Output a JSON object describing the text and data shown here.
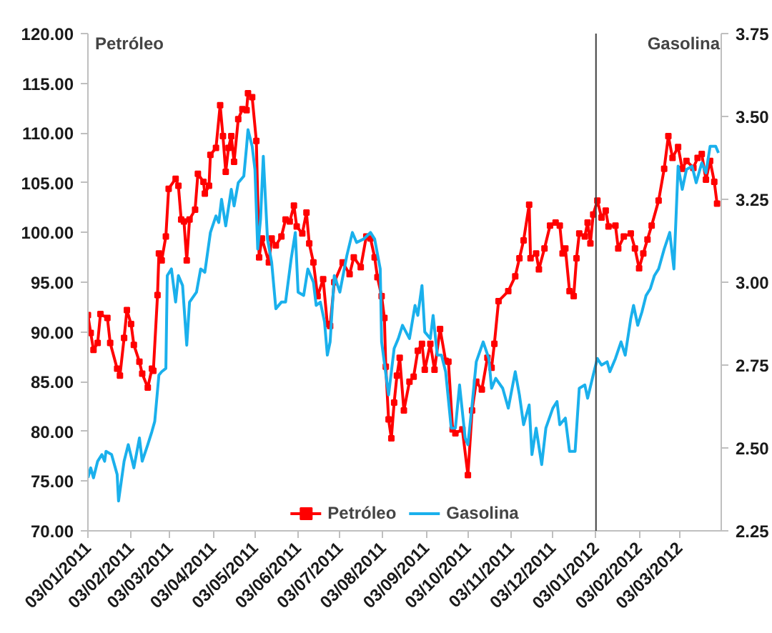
{
  "chart_data": {
    "type": "line",
    "ylabel": "Petróleo",
    "y2label": "Gasolina",
    "legend": "bottom",
    "grid": false,
    "line_style": "solid",
    "xlim": [
      "2011-01-03",
      "2012-04-02"
    ],
    "xticks": [
      {
        "value": "2011-01-03",
        "label": "03/01/2011"
      },
      {
        "value": "2011-02-03",
        "label": "03/02/2011"
      },
      {
        "value": "2011-03-03",
        "label": "03/03/2011"
      },
      {
        "value": "2011-04-03",
        "label": "03/04/2011"
      },
      {
        "value": "2011-05-03",
        "label": "03/05/2011"
      },
      {
        "value": "2011-06-03",
        "label": "03/06/2011"
      },
      {
        "value": "2011-07-03",
        "label": "03/07/2011"
      },
      {
        "value": "2011-08-03",
        "label": "03/08/2011"
      },
      {
        "value": "2011-09-03",
        "label": "03/09/2011"
      },
      {
        "value": "2011-10-03",
        "label": "03/10/2011"
      },
      {
        "value": "2011-11-03",
        "label": "03/11/2011"
      },
      {
        "value": "2011-12-03",
        "label": "03/12/2011"
      },
      {
        "value": "2012-01-03",
        "label": "03/01/2012"
      },
      {
        "value": "2012-02-03",
        "label": "03/02/2012"
      },
      {
        "value": "2012-03-03",
        "label": "03/03/2012"
      }
    ],
    "ylim": [
      70,
      120
    ],
    "yticks": [
      {
        "value": 70,
        "label": "70.00"
      },
      {
        "value": 75,
        "label": "75.00"
      },
      {
        "value": 80,
        "label": "80.00"
      },
      {
        "value": 85,
        "label": "85.00"
      },
      {
        "value": 90,
        "label": "90.00"
      },
      {
        "value": 95,
        "label": "95.00"
      },
      {
        "value": 100,
        "label": "100.00"
      },
      {
        "value": 105,
        "label": "105.00"
      },
      {
        "value": 110,
        "label": "110.00"
      },
      {
        "value": 115,
        "label": "115.00"
      },
      {
        "value": 120,
        "label": "120.00"
      }
    ],
    "y2lim": [
      2.25,
      3.75
    ],
    "y2ticks": [
      2.25,
      {
        "value": 2.5,
        "label": "2.50"
      },
      2.75,
      {
        "value": 3,
        "label": "3.00"
      },
      3.25,
      {
        "value": 3.5,
        "label": "3.50"
      },
      3.75
    ],
    "ref_lines": [
      {
        "axis": "x",
        "value": "2012-01-03",
        "color": "#404040",
        "line_style": "solid"
      }
    ],
    "series": [
      {
        "name": "Petróleo",
        "color": "#ff0000",
        "marker": "square",
        "axis": "y",
        "x": [
          "2011-01-03",
          "2011-01-05",
          "2011-01-07",
          "2011-01-10",
          "2011-01-12",
          "2011-01-17",
          "2011-01-19",
          "2011-01-24",
          "2011-01-26",
          "2011-01-29",
          "2011-01-31",
          "2011-02-03",
          "2011-02-05",
          "2011-02-09",
          "2011-02-11",
          "2011-02-15",
          "2011-02-18",
          "2011-02-19",
          "2011-02-22",
          "2011-02-23",
          "2011-02-25",
          "2011-02-28",
          "2011-03-02",
          "2011-03-07",
          "2011-03-09",
          "2011-03-11",
          "2011-03-13",
          "2011-03-15",
          "2011-03-17",
          "2011-03-21",
          "2011-03-23",
          "2011-03-27",
          "2011-03-28",
          "2011-03-31",
          "2011-04-01",
          "2011-04-05",
          "2011-04-08",
          "2011-04-10",
          "2011-04-12",
          "2011-04-14",
          "2011-04-16",
          "2011-04-18",
          "2011-04-21",
          "2011-04-24",
          "2011-04-27",
          "2011-04-28",
          "2011-05-01",
          "2011-05-04",
          "2011-05-06",
          "2011-05-08",
          "2011-05-13",
          "2011-05-15",
          "2011-05-18",
          "2011-05-22",
          "2011-05-25",
          "2011-05-28",
          "2011-05-31",
          "2011-06-02",
          "2011-06-06",
          "2011-06-09",
          "2011-06-11",
          "2011-06-14",
          "2011-06-17",
          "2011-06-21",
          "2011-06-24",
          "2011-06-26",
          "2011-06-29",
          "2011-07-05",
          "2011-07-10",
          "2011-07-13",
          "2011-07-18",
          "2011-07-22",
          "2011-07-25",
          "2011-07-28",
          "2011-07-30",
          "2011-08-02",
          "2011-08-04",
          "2011-08-05",
          "2011-08-07",
          "2011-08-09",
          "2011-08-11",
          "2011-08-13",
          "2011-08-15",
          "2011-08-18",
          "2011-08-22",
          "2011-08-25",
          "2011-08-28",
          "2011-08-31",
          "2011-09-02",
          "2011-09-06",
          "2011-09-09",
          "2011-09-13",
          "2011-09-17",
          "2011-09-19",
          "2011-09-22",
          "2011-09-24",
          "2011-09-29",
          "2011-10-03",
          "2011-10-06",
          "2011-10-09",
          "2011-10-13",
          "2011-10-17",
          "2011-10-20",
          "2011-10-22",
          "2011-10-25",
          "2011-11-01",
          "2011-11-06",
          "2011-11-09",
          "2011-11-12",
          "2011-11-16",
          "2011-11-17",
          "2011-11-21",
          "2011-11-23",
          "2011-11-27",
          "2011-12-01",
          "2011-12-05",
          "2011-12-08",
          "2011-12-10",
          "2011-12-12",
          "2011-12-15",
          "2011-12-18",
          "2011-12-20",
          "2011-12-22",
          "2011-12-26",
          "2011-12-28",
          "2011-12-30",
          "2012-01-01",
          "2012-01-04",
          "2012-01-07",
          "2012-01-10",
          "2012-01-12",
          "2012-01-17",
          "2012-01-19",
          "2012-01-23",
          "2012-01-28",
          "2012-01-31",
          "2012-02-03",
          "2012-02-06",
          "2012-02-09",
          "2012-02-12",
          "2012-02-17",
          "2012-02-21",
          "2012-02-24",
          "2012-02-27",
          "2012-03-02",
          "2012-03-05",
          "2012-03-08",
          "2012-03-13",
          "2012-03-16",
          "2012-03-19",
          "2012-03-22",
          "2012-03-25",
          "2012-03-28",
          "2012-03-30"
        ],
        "values": [
          91.7,
          89.9,
          88.2,
          88.9,
          91.8,
          91.4,
          88.9,
          86.3,
          85.6,
          89.4,
          92.2,
          90.8,
          88.7,
          87.0,
          85.8,
          84.4,
          86.3,
          86.1,
          93.7,
          97.9,
          97.2,
          99.6,
          104.4,
          105.4,
          104.7,
          101.3,
          101.1,
          97.2,
          101.3,
          102.3,
          105.9,
          105.1,
          103.9,
          104.7,
          107.8,
          108.5,
          112.8,
          109.7,
          106.1,
          108.5,
          109.7,
          107.1,
          111.4,
          112.4,
          112.3,
          114.0,
          113.6,
          109.2,
          97.5,
          99.4,
          97.0,
          99.4,
          98.7,
          99.6,
          101.3,
          101.1,
          102.7,
          100.6,
          99.9,
          102.0,
          98.9,
          97.0,
          93.6,
          95.3,
          90.8,
          90.6,
          95.0,
          97.0,
          95.8,
          97.5,
          96.5,
          99.6,
          99.4,
          97.5,
          95.5,
          93.6,
          91.4,
          86.5,
          81.2,
          79.3,
          82.9,
          85.6,
          87.4,
          82.1,
          85.0,
          85.5,
          88.1,
          88.8,
          86.2,
          88.8,
          86.2,
          90.3,
          87.1,
          87.0,
          80.2,
          79.8,
          80.2,
          75.6,
          82.1,
          85.0,
          84.2,
          87.4,
          86.4,
          88.8,
          93.1,
          94.1,
          95.6,
          97.4,
          99.2,
          102.8,
          97.4,
          97.9,
          96.3,
          98.4,
          100.7,
          101.0,
          100.7,
          97.9,
          98.4,
          94.1,
          93.6,
          97.4,
          99.9,
          99.6,
          101.0,
          98.9,
          101.8,
          103.2,
          101.5,
          102.2,
          100.6,
          100.7,
          98.4,
          99.6,
          99.9,
          98.4,
          96.4,
          97.9,
          99.3,
          100.7,
          103.2,
          106.4,
          109.7,
          107.5,
          108.6,
          106.4,
          107.2,
          106.5,
          107.5,
          107.9,
          105.3,
          107.2,
          105.1,
          102.9
        ]
      },
      {
        "name": "Gasolina",
        "color": "#1ab0ec",
        "marker": "none",
        "axis": "y2",
        "x": [
          "2011-01-03",
          "2011-01-05",
          "2011-01-07",
          "2011-01-10",
          "2011-01-13",
          "2011-01-15",
          "2011-01-16",
          "2011-01-20",
          "2011-01-24",
          "2011-01-25",
          "2011-01-29",
          "2011-02-01",
          "2011-02-05",
          "2011-02-09",
          "2011-02-11",
          "2011-02-15",
          "2011-02-18",
          "2011-02-20",
          "2011-02-23",
          "2011-02-25",
          "2011-02-28",
          "2011-03-01",
          "2011-03-04",
          "2011-03-07",
          "2011-03-09",
          "2011-03-12",
          "2011-03-15",
          "2011-03-17",
          "2011-03-22",
          "2011-03-25",
          "2011-03-28",
          "2011-04-01",
          "2011-04-05",
          "2011-04-07",
          "2011-04-09",
          "2011-04-12",
          "2011-04-16",
          "2011-04-18",
          "2011-04-21",
          "2011-04-25",
          "2011-04-27",
          "2011-04-28",
          "2011-05-01",
          "2011-05-03",
          "2011-05-05",
          "2011-05-07",
          "2011-05-09",
          "2011-05-12",
          "2011-05-15",
          "2011-05-18",
          "2011-05-22",
          "2011-05-25",
          "2011-05-29",
          "2011-06-01",
          "2011-06-03",
          "2011-06-07",
          "2011-06-10",
          "2011-06-14",
          "2011-06-16",
          "2011-06-19",
          "2011-06-22",
          "2011-06-24",
          "2011-06-26",
          "2011-06-29",
          "2011-07-03",
          "2011-07-08",
          "2011-07-12",
          "2011-07-15",
          "2011-07-20",
          "2011-07-25",
          "2011-07-28",
          "2011-08-01",
          "2011-08-02",
          "2011-08-07",
          "2011-08-11",
          "2011-08-14",
          "2011-08-17",
          "2011-08-22",
          "2011-08-26",
          "2011-08-28",
          "2011-08-31",
          "2011-09-02",
          "2011-09-06",
          "2011-09-08",
          "2011-09-11",
          "2011-09-14",
          "2011-09-17",
          "2011-09-21",
          "2011-09-24",
          "2011-09-27",
          "2011-10-01",
          "2011-10-03",
          "2011-10-06",
          "2011-10-09",
          "2011-10-14",
          "2011-10-18",
          "2011-10-20",
          "2011-10-23",
          "2011-10-28",
          "2011-11-01",
          "2011-11-06",
          "2011-11-09",
          "2011-11-12",
          "2011-11-16",
          "2011-11-18",
          "2011-11-21",
          "2011-11-25",
          "2011-11-28",
          "2011-12-03",
          "2011-12-06",
          "2011-12-08",
          "2011-12-12",
          "2011-12-15",
          "2011-12-19",
          "2011-12-22",
          "2011-12-26",
          "2011-12-28",
          "2012-01-01",
          "2012-01-04",
          "2012-01-07",
          "2012-01-11",
          "2012-01-13",
          "2012-01-17",
          "2012-01-21",
          "2012-01-24",
          "2012-01-28",
          "2012-01-30",
          "2012-02-02",
          "2012-02-05",
          "2012-02-08",
          "2012-02-11",
          "2012-02-14",
          "2012-02-17",
          "2012-02-21",
          "2012-02-25",
          "2012-02-28",
          "2012-03-02",
          "2012-03-05",
          "2012-03-08",
          "2012-03-12",
          "2012-03-15",
          "2012-03-19",
          "2012-03-22",
          "2012-03-25",
          "2012-03-29",
          "2012-03-31"
        ],
        "values": [
          2.41,
          2.44,
          2.41,
          2.46,
          2.48,
          2.46,
          2.49,
          2.48,
          2.42,
          2.34,
          2.46,
          2.51,
          2.44,
          2.53,
          2.46,
          2.51,
          2.55,
          2.58,
          2.72,
          2.73,
          2.74,
          3.02,
          3.04,
          2.94,
          3.02,
          2.99,
          2.81,
          2.94,
          2.97,
          3.04,
          3.03,
          3.15,
          3.2,
          3.18,
          3.25,
          3.17,
          3.28,
          3.23,
          3.3,
          3.32,
          3.41,
          3.46,
          3.41,
          3.34,
          3.1,
          3.19,
          3.38,
          3.13,
          3.06,
          2.92,
          2.94,
          2.94,
          3.07,
          3.15,
          2.97,
          2.96,
          3.04,
          3.0,
          2.93,
          2.94,
          2.88,
          2.78,
          2.82,
          3.02,
          2.97,
          3.08,
          3.15,
          3.12,
          3.13,
          3.15,
          3.13,
          3.04,
          2.82,
          2.66,
          2.8,
          2.83,
          2.87,
          2.83,
          2.93,
          2.9,
          2.99,
          2.85,
          2.83,
          2.9,
          2.78,
          2.78,
          2.73,
          2.56,
          2.56,
          2.69,
          2.53,
          2.51,
          2.63,
          2.76,
          2.82,
          2.77,
          2.68,
          2.71,
          2.68,
          2.62,
          2.73,
          2.66,
          2.57,
          2.63,
          2.48,
          2.56,
          2.45,
          2.56,
          2.62,
          2.64,
          2.57,
          2.59,
          2.49,
          2.49,
          2.68,
          2.69,
          2.65,
          2.72,
          2.77,
          2.75,
          2.76,
          2.73,
          2.77,
          2.82,
          2.78,
          2.89,
          2.93,
          2.87,
          2.91,
          2.96,
          2.98,
          3.02,
          3.04,
          3.1,
          3.15,
          3.04,
          3.35,
          3.28,
          3.34,
          3.35,
          3.3,
          3.36,
          3.33,
          3.41,
          3.41,
          3.39
        ]
      }
    ]
  }
}
